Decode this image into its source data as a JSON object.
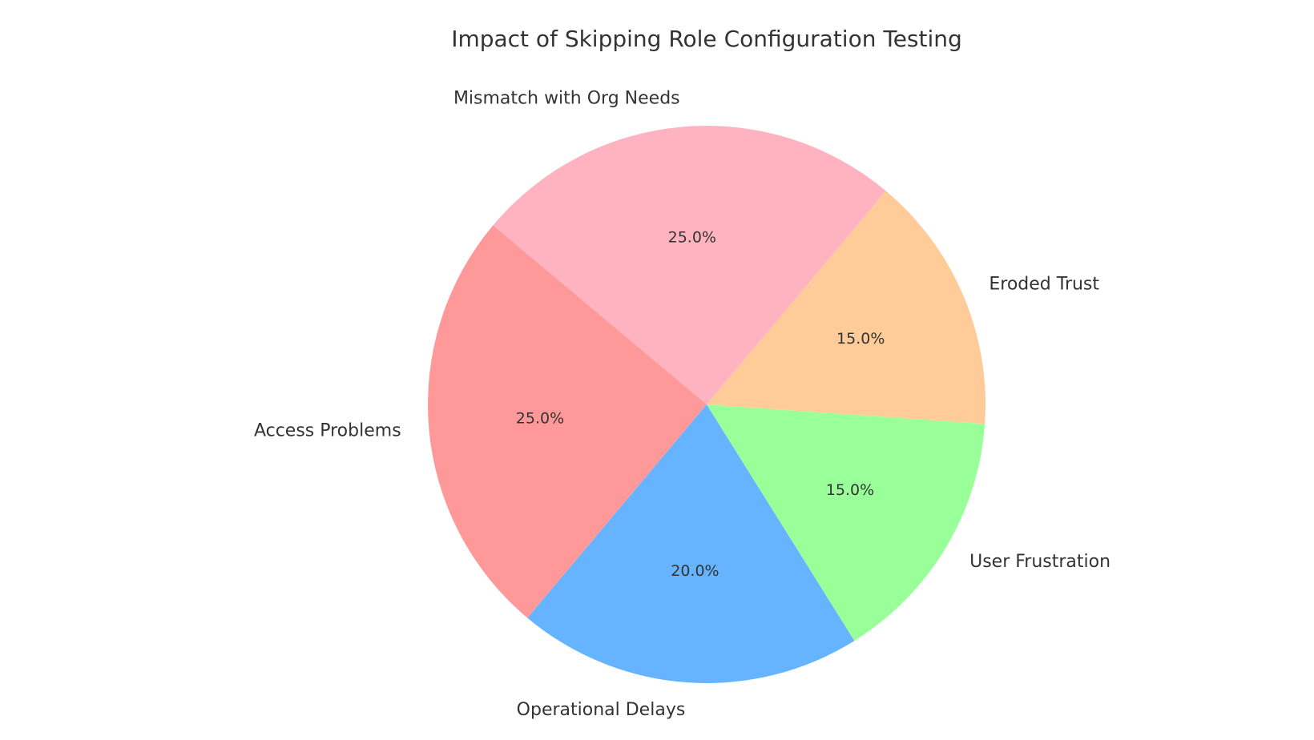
{
  "chart_data": {
    "type": "pie",
    "title": "Impact of Skipping Role Configuration Testing",
    "slices": [
      {
        "label": "Access Problems",
        "value": 25,
        "pct_label": "25.0%",
        "color": "#ff9999"
      },
      {
        "label": "Operational Delays",
        "value": 20,
        "pct_label": "20.0%",
        "color": "#66b3ff"
      },
      {
        "label": "User Frustration",
        "value": 15,
        "pct_label": "15.0%",
        "color": "#99ff99"
      },
      {
        "label": "Eroded Trust",
        "value": 15,
        "pct_label": "15.0%",
        "color": "#ffcc99"
      },
      {
        "label": "Mismatch with Org Needs",
        "value": 25,
        "pct_label": "25.0%",
        "color": "#ffb3c1"
      }
    ],
    "start_angle_deg": 140,
    "direction": "counterclockwise",
    "legend": "none"
  }
}
